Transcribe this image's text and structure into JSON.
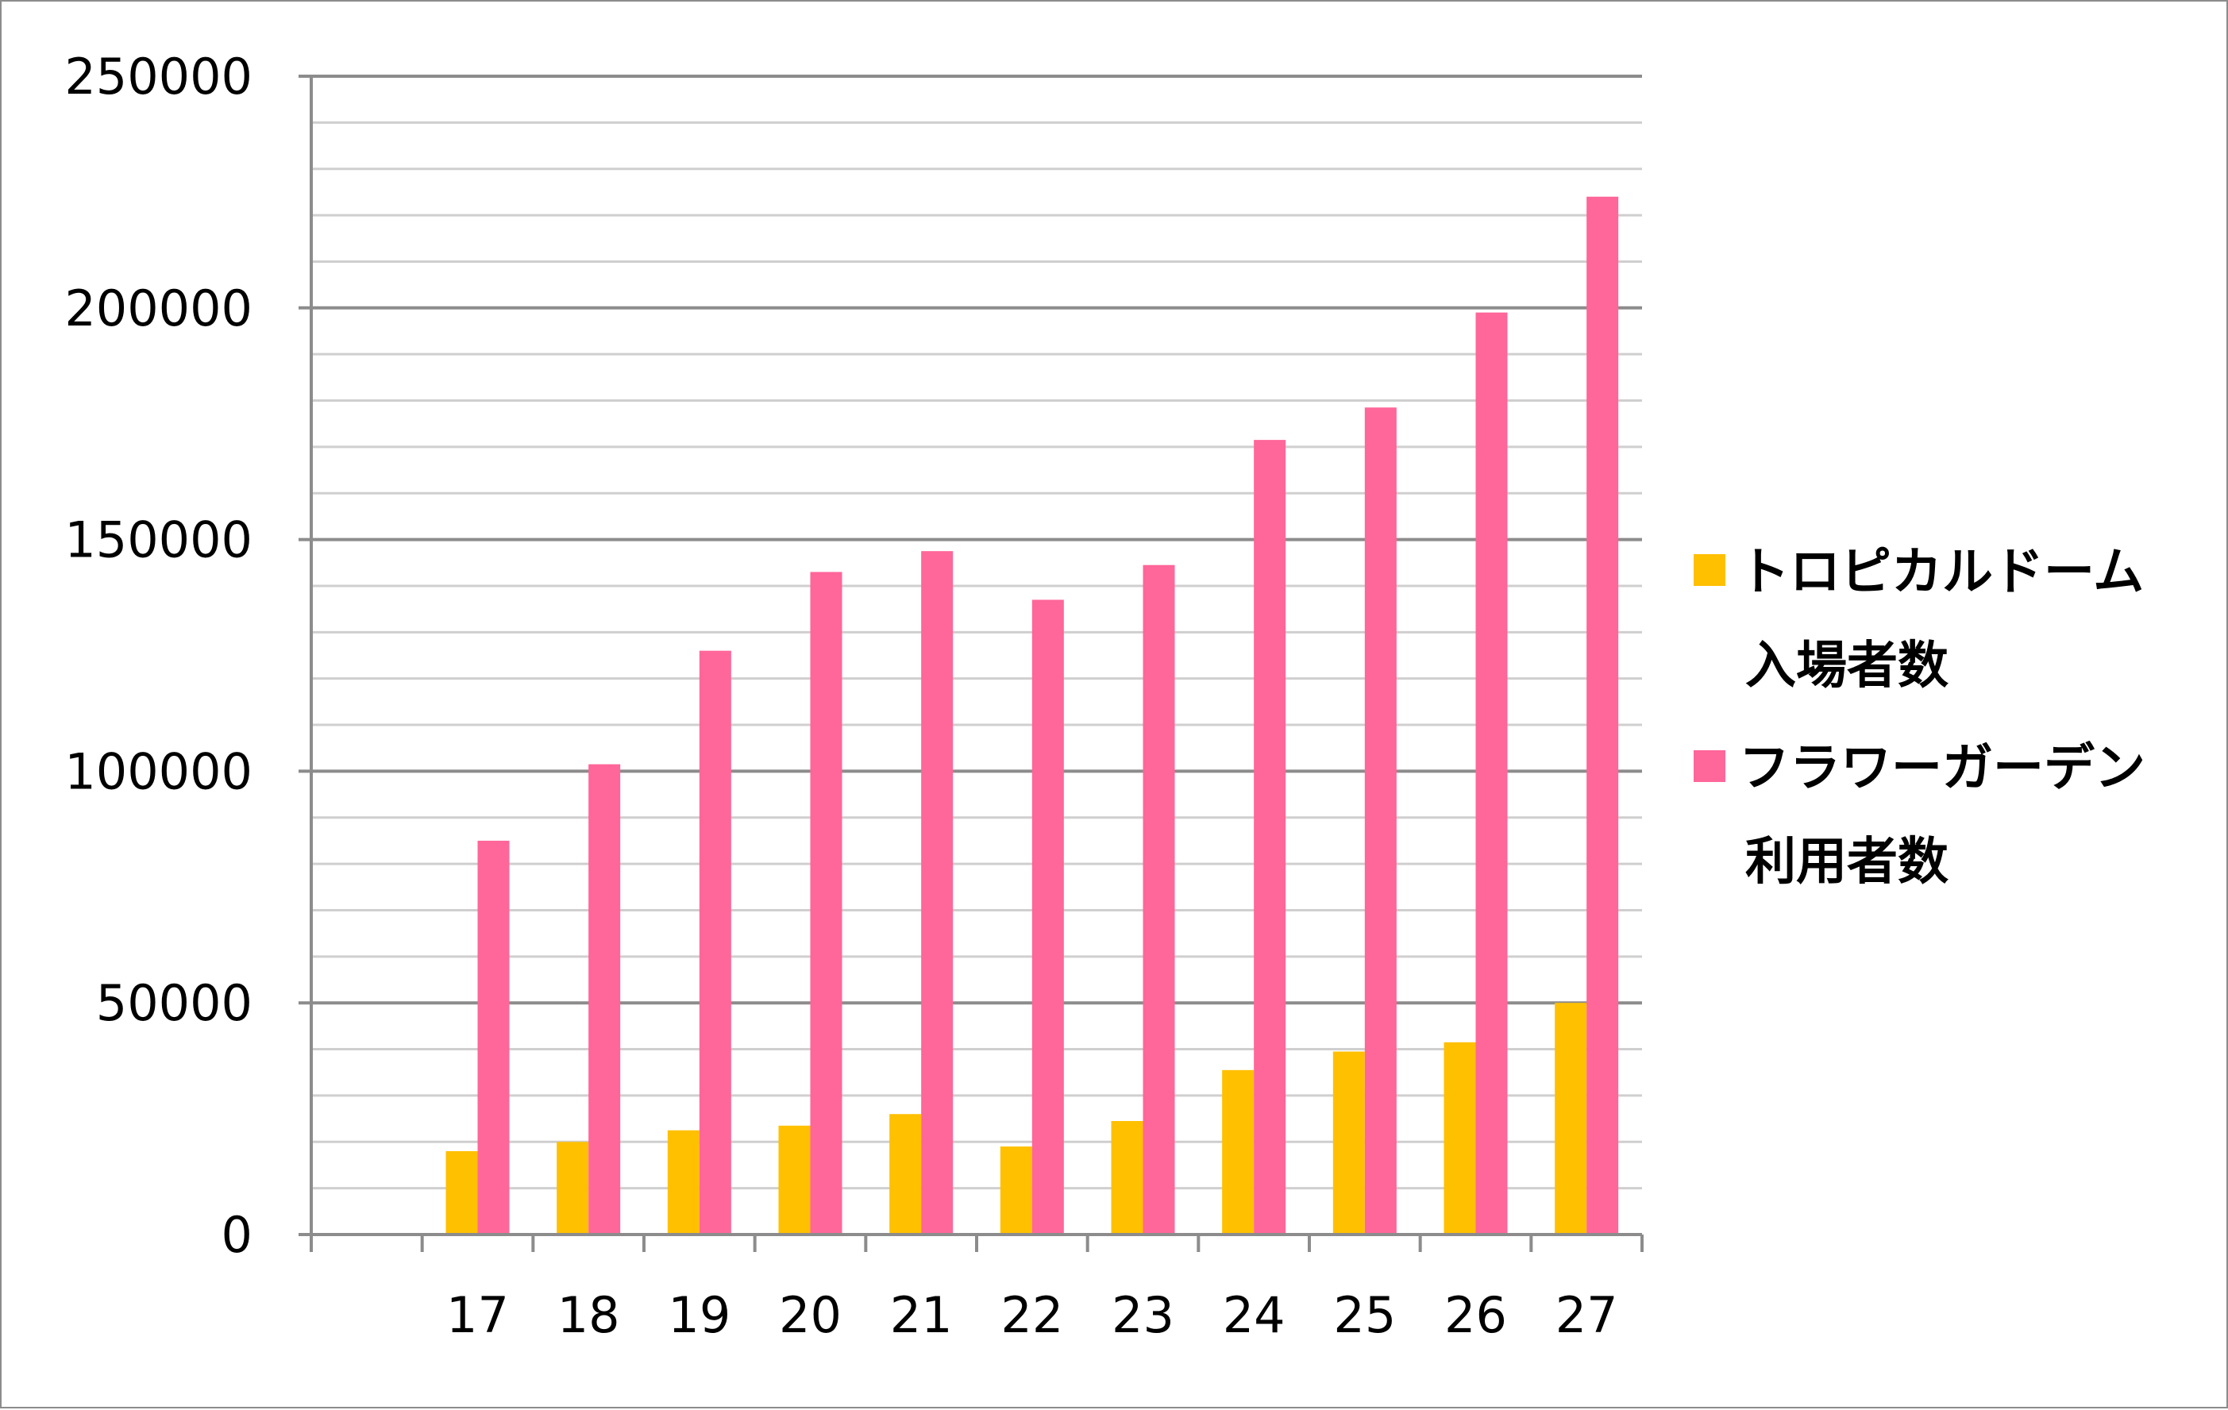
{
  "chart_data": {
    "type": "bar",
    "categories": [
      "",
      "17",
      "18",
      "19",
      "20",
      "21",
      "22",
      "23",
      "24",
      "25",
      "26",
      "27"
    ],
    "series": [
      {
        "name": "トロピカルドーム 入場者数",
        "name_lines": [
          "トロピカルドーム",
          "入場者数"
        ],
        "color": "#ffc000",
        "values": [
          null,
          18000,
          20000,
          22500,
          23500,
          26000,
          19000,
          24500,
          35500,
          39500,
          41500,
          50000
        ]
      },
      {
        "name": "フラワーガーデン 利用者数",
        "name_lines": [
          "フラワーガーデン",
          "利用者数"
        ],
        "color": "#ff6699",
        "values": [
          null,
          85000,
          101500,
          126000,
          143000,
          147500,
          137000,
          144500,
          171500,
          178500,
          199000,
          224000
        ]
      }
    ],
    "yticks": [
      "0",
      "50000",
      "100000",
      "150000",
      "200000",
      "250000"
    ],
    "ylim": [
      0,
      250000
    ],
    "minor_gridline_step": 10000,
    "grid": true,
    "legend_position": "right",
    "title": "",
    "xlabel": "",
    "ylabel": ""
  }
}
